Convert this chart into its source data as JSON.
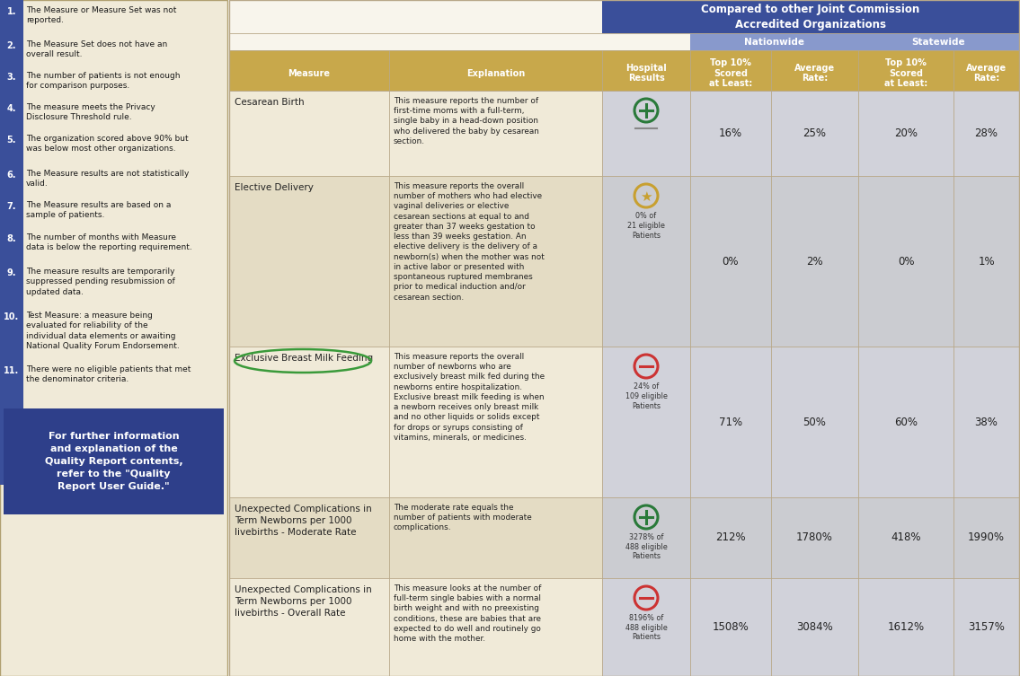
{
  "bg_color": "#f0ead8",
  "left_panel_bg": "#f0ead8",
  "sidebar_blue": "#3a4f9a",
  "header_blue": "#3a4f9a",
  "subheader_blue": "#8899cc",
  "gold_header": "#c8a84b",
  "col_blue_bg": "#b8c0dc",
  "further_info_bg": "#2e3f8a",
  "footnote_items": [
    "The Measure or Measure Set was not\nreported.",
    "The Measure Set does not have an\noverall result.",
    "The number of patients is not enough\nfor comparison purposes.",
    "The measure meets the Privacy\nDisclosure Threshold rule.",
    "The organization scored above 90% but\nwas below most other organizations.",
    "The Measure results are not statistically\nvalid.",
    "The Measure results are based on a\nsample of patients.",
    "The number of months with Measure\ndata is below the reporting requirement.",
    "The measure results are temporarily\nsuppressed pending resubmission of\nupdated data.",
    "Test Measure: a measure being\nevaluated for reliability of the\nindividual data elements or awaiting\nNational Quality Forum Endorsement.",
    "There were no eligible patients that met\nthe denominator criteria."
  ],
  "further_info_text": "For further information\nand explanation of the\nQuality Report contents,\nrefer to the \"Quality\nReport User Guide.\"",
  "measures": [
    "Cesarean Birth",
    "Elective Delivery",
    "Exclusive Breast Milk Feeding",
    "Unexpected Complications in\nTerm Newborns per 1000\nlivebirths - Moderate Rate",
    "Unexpected Complications in\nTerm Newborns per 1000\nlivebirths - Overall Rate"
  ],
  "explanations": [
    "This measure reports the number of\nfirst-time moms with a full-term,\nsingle baby in a head-down position\nwho delivered the baby by cesarean\nsection.",
    "This measure reports the overall\nnumber of mothers who had elective\nvaginal deliveries or elective\ncesarean sections at equal to and\ngreater than 37 weeks gestation to\nless than 39 weeks gestation. An\nelective delivery is the delivery of a\nnewborn(s) when the mother was not\nin active labor or presented with\nspontaneous ruptured membranes\nprior to medical induction and/or\ncesarean section.",
    "This measure reports the overall\nnumber of newborns who are\nexclusively breast milk fed during the\nnewborns entire hospitalization.\nExclusive breast milk feeding is when\na newborn receives only breast milk\nand no other liquids or solids except\nfor drops or syrups consisting of\nvitamins, minerals, or medicines.",
    "The moderate rate equals the\nnumber of patients with moderate\ncomplications.",
    "This measure looks at the number of\nfull-term single babies with a normal\nbirth weight and with no preexisting\nconditions, these are babies that are\nexpected to do well and routinely go\nhome with the mother."
  ],
  "hospital_results": [
    {
      "icon": "plus_circle",
      "color": "#2a7a3a",
      "text": "",
      "dash": true
    },
    {
      "icon": "star_circle",
      "color": "#c8a030",
      "text": "0% of\n21 eligible\nPatients",
      "dash": false
    },
    {
      "icon": "minus_circle",
      "color": "#cc3333",
      "text": "24% of\n109 eligible\nPatients",
      "dash": false
    },
    {
      "icon": "plus_circle",
      "color": "#2a7a3a",
      "text": "3278% of\n488 eligible\nPatients",
      "dash": false
    },
    {
      "icon": "minus_circle",
      "color": "#cc3333",
      "text": "8196% of\n488 eligible\nPatients",
      "dash": false
    }
  ],
  "nationwide_top10": [
    "16%",
    "0%",
    "71%",
    "212%",
    "1508%"
  ],
  "nationwide_avg": [
    "25%",
    "2%",
    "50%",
    "1780%",
    "3084%"
  ],
  "statewide_top10": [
    "20%",
    "0%",
    "60%",
    "418%",
    "1612%"
  ],
  "statewide_avg": [
    "28%",
    "1%",
    "38%",
    "1990%",
    "3157%"
  ],
  "header_main": "Compared to other Joint Commission\nAccredited Organizations",
  "header_nationwide": "Nationwide",
  "header_statewide": "Statewide",
  "col_header_measure": "Measure",
  "col_header_explanation": "Explanation",
  "col_headers_right": [
    "Hospital\nResults",
    "Top 10%\nScored\nat Least:",
    "Average\nRate:",
    "Top 10%\nScored\nat Least:",
    "Average\nRate:"
  ]
}
